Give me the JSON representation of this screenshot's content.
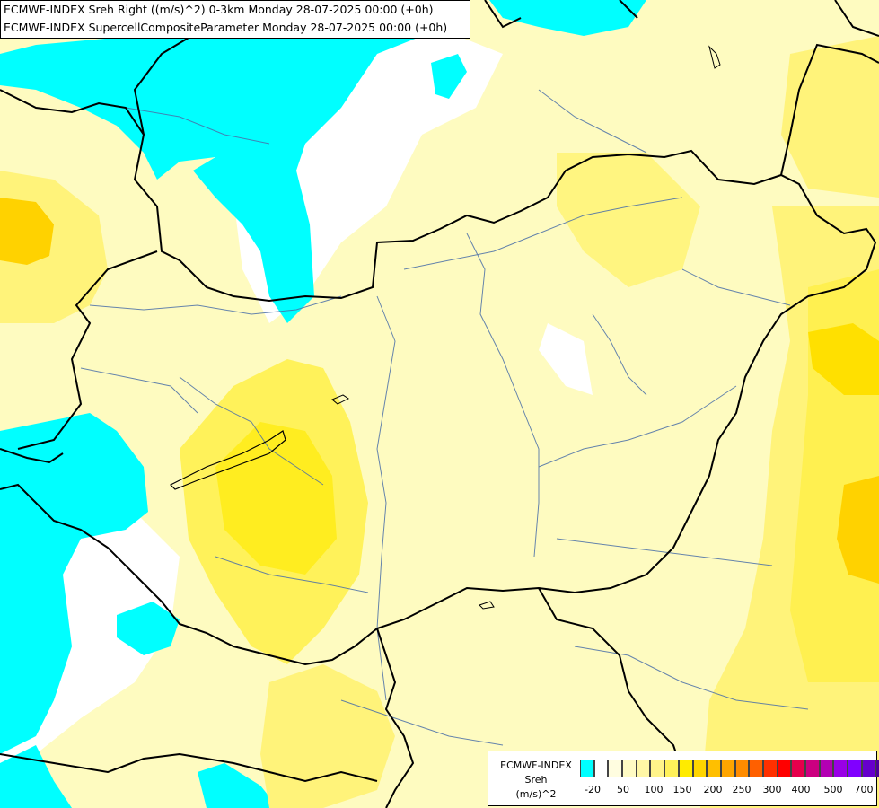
{
  "header": {
    "line1": "ECMWF-INDEX Sreh Right ((m/s)^2) 0-3km Monday 28-07-2025 00:00 (+0h)",
    "line2": "ECMWF-INDEX SupercellCompositeParameter Monday 28-07-2025 00:00 (+0h)"
  },
  "legend": {
    "name": "ECMWF-INDEX",
    "param": "Sreh",
    "unit": "(m/s)^2",
    "colors": [
      "#00ffff",
      "#ffffff",
      "#fffde0",
      "#fffbc4",
      "#fff7a6",
      "#fff48a",
      "#fff15a",
      "#ffeb00",
      "#ffd500",
      "#ffbf00",
      "#ffa500",
      "#ff8c00",
      "#ff6000",
      "#ff3000",
      "#ff0000",
      "#e6004c",
      "#cc0080",
      "#b300b3",
      "#9900e6",
      "#8000ff",
      "#6600cc",
      "#4d0099",
      "#1a0066"
    ],
    "ticks": [
      "-20",
      "50",
      "100",
      "150",
      "200",
      "250",
      "300",
      "400",
      "500",
      "700"
    ]
  },
  "map": {
    "field_colors": {
      "cyan": "#00ffff",
      "white": "#ffffff",
      "pale": "#fffbc4",
      "light": "#fff7a6",
      "mid": "#fff15a",
      "strong": "#ffeb00",
      "orange": "#ffd500"
    }
  }
}
